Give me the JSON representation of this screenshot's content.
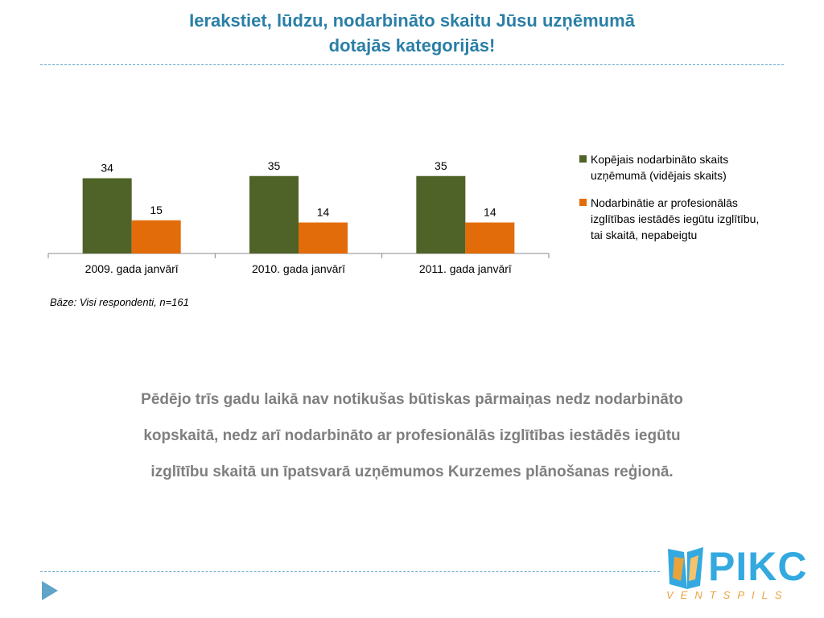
{
  "title": {
    "line1": "Ierakstiet, lūdzu, nodarbināto skaitu Jūsu uzņēmumā",
    "line2": "dotajās kategorijās!"
  },
  "chart_data": {
    "type": "bar",
    "categories": [
      "2009. gada janvārī",
      "2010. gada janvārī",
      "2011. gada janvārī"
    ],
    "series": [
      {
        "name": "Kopējais nodarbināto skaits uzņēmumā (vidējais skaits)",
        "values": [
          34,
          35,
          35
        ],
        "color": "#4f6228"
      },
      {
        "name": "Nodarbinātie ar profesionālās izglītības iestādēs iegūtu izglītību, tai skaitā, nepabeigtu",
        "values": [
          15,
          14,
          14
        ],
        "color": "#e36c0a"
      }
    ],
    "ylim": [
      0,
      40
    ],
    "grid": false,
    "data_labels": true,
    "legend_position": "right"
  },
  "legend": {
    "item1": {
      "line1": "Kopējais nodarbināto skaits",
      "line2": "uzņēmumā (vidējais skaits)"
    },
    "item2": {
      "line1": "Nodarbinātie ar profesionālās",
      "line2": "izglītības iestādēs iegūtu izglītību,",
      "line3": "tai skaitā, nepabeigtu"
    }
  },
  "base_note": "Bāze: Visi respondenti, n=161",
  "summary": {
    "line1": "Pēdējo trīs gadu laikā nav notikušas būtiskas pārmaiņas nedz nodarbināto",
    "line2": "kopskaitā, nedz arī nodarbināto ar profesionālās izglītības iestādēs iegūtu",
    "line3": "izglītību skaitā un īpatsvarā uzņēmumos Kurzemes plānošanas reģionā."
  },
  "logo": {
    "text": "PIKC",
    "subtext": "VENTSPILS"
  },
  "colors": {
    "title": "#2a7fa6",
    "summary": "#7f7f7f",
    "accent": "#5fa4c9",
    "logo_blue": "#33a9e0",
    "logo_orange": "#e8a33d"
  },
  "icons": {
    "nav": "play-arrow-icon",
    "logo": "pikc-book-icon"
  }
}
